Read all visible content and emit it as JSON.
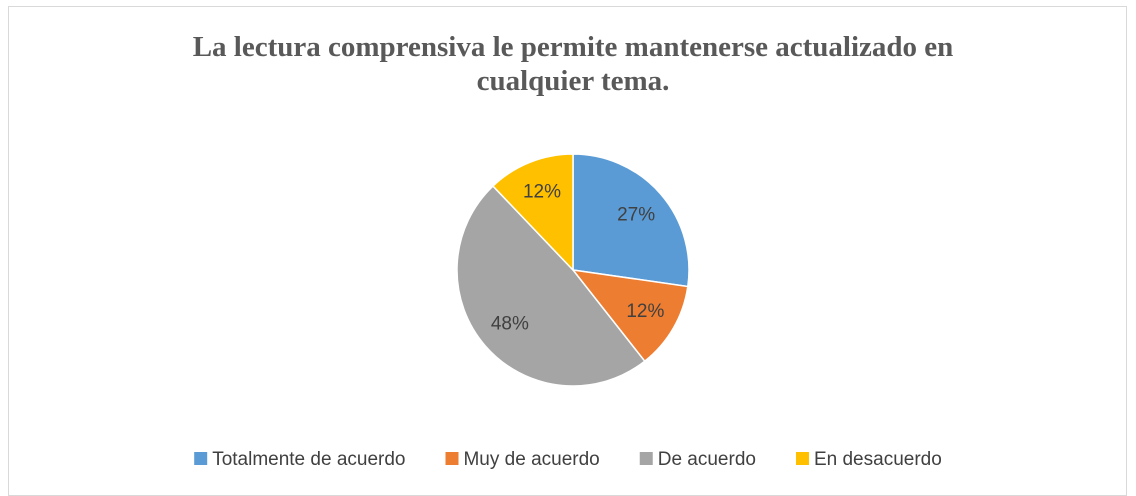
{
  "chart_data": {
    "type": "pie",
    "title": "La lectura comprensiva le permite mantenerse actualizado en cualquier tema.",
    "categories": [
      "Totalmente de acuerdo",
      "Muy de acuerdo",
      "De acuerdo",
      "En desacuerdo"
    ],
    "values": [
      27,
      12,
      48,
      12
    ],
    "value_labels": [
      "27%",
      "12%",
      "48%",
      "12%"
    ],
    "colors": [
      "#5b9bd5",
      "#ed7d31",
      "#a5a5a5",
      "#ffc000"
    ],
    "legend": "bottom"
  }
}
